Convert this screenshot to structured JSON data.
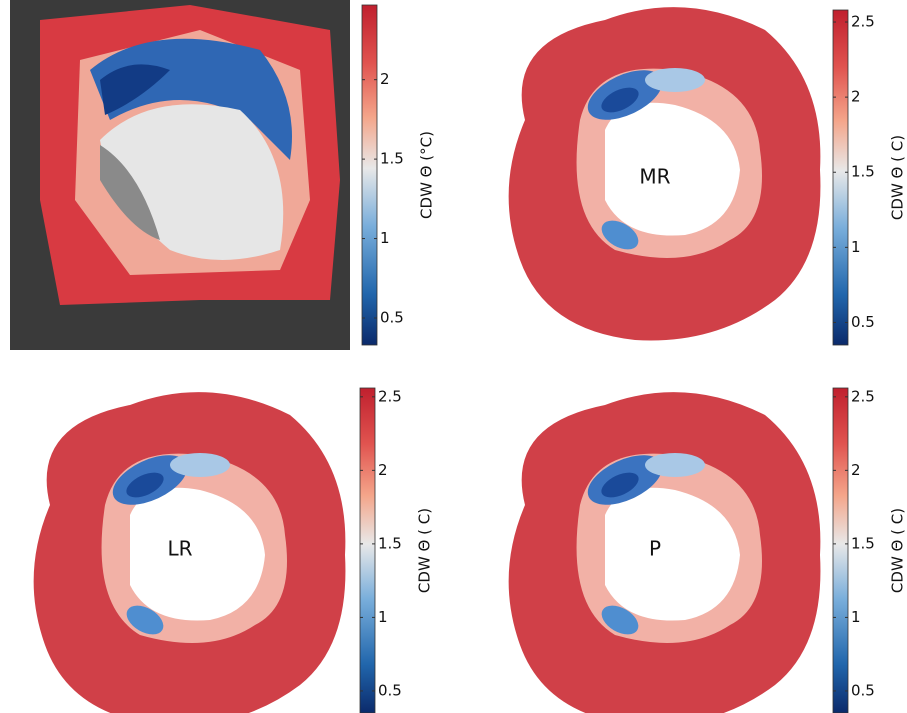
{
  "panels": [
    {
      "colorbar": {
        "label": "CDW Θ (°C)",
        "lim": [
          0.33,
          2.47
        ],
        "ticks": [
          0.5,
          1,
          1.5,
          2
        ]
      }
    },
    {
      "label": "MR",
      "colorbar": {
        "label": "CDW Θ ( C)",
        "lim": [
          0.35,
          2.58
        ],
        "ticks": [
          0.5,
          1,
          1.5,
          2,
          2.5
        ]
      }
    },
    {
      "label": "LR",
      "colorbar": {
        "label": "CDW Θ ( C)",
        "lim": [
          0.35,
          2.56
        ],
        "ticks": [
          0.5,
          1,
          1.5,
          2,
          2.5
        ]
      }
    },
    {
      "label": "P",
      "colorbar": {
        "label": "CDW Θ ( C)",
        "lim": [
          0.35,
          2.56
        ],
        "ticks": [
          0.5,
          1,
          1.5,
          2,
          2.5
        ]
      }
    }
  ]
}
